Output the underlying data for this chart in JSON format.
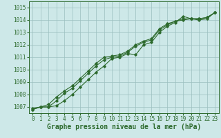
{
  "x": [
    0,
    1,
    2,
    3,
    4,
    5,
    6,
    7,
    8,
    9,
    10,
    11,
    12,
    13,
    14,
    15,
    16,
    17,
    18,
    19,
    20,
    21,
    22,
    23
  ],
  "line1": [
    1006.8,
    1007.0,
    1007.0,
    1007.1,
    1007.5,
    1008.0,
    1008.6,
    1009.2,
    1009.8,
    1010.3,
    1010.9,
    1011.0,
    1011.3,
    1011.2,
    1012.0,
    1012.2,
    1013.0,
    1013.5,
    1013.8,
    1014.3,
    1014.1,
    1014.0,
    1014.1,
    1014.6
  ],
  "line2": [
    1006.8,
    1007.0,
    1007.0,
    1007.5,
    1008.1,
    1008.5,
    1009.1,
    1009.7,
    1010.3,
    1010.8,
    1011.0,
    1011.1,
    1011.4,
    1011.9,
    1012.2,
    1012.4,
    1013.2,
    1013.6,
    1013.9,
    1014.0,
    1014.1,
    1014.1,
    1014.2,
    1014.6
  ],
  "line3": [
    1006.9,
    1007.0,
    1007.2,
    1007.8,
    1008.3,
    1008.7,
    1009.3,
    1009.9,
    1010.5,
    1011.0,
    1011.1,
    1011.2,
    1011.5,
    1012.0,
    1012.3,
    1012.5,
    1013.3,
    1013.7,
    1013.9,
    1014.1,
    1014.1,
    1014.1,
    1014.2,
    1014.6
  ],
  "line_color": "#2d6a2d",
  "bg_color": "#cde8e8",
  "grid_color": "#9bbfbf",
  "xlabel": "Graphe pression niveau de la mer (hPa)",
  "ylim": [
    1006.5,
    1015.5
  ],
  "xlim": [
    -0.5,
    23.5
  ],
  "yticks": [
    1007,
    1008,
    1009,
    1010,
    1011,
    1012,
    1013,
    1014,
    1015
  ],
  "xticks": [
    0,
    1,
    2,
    3,
    4,
    5,
    6,
    7,
    8,
    9,
    10,
    11,
    12,
    13,
    14,
    15,
    16,
    17,
    18,
    19,
    20,
    21,
    22,
    23
  ],
  "marker": "D",
  "markersize": 1.8,
  "linewidth": 0.8,
  "xlabel_fontsize": 7,
  "tick_fontsize": 5.5
}
